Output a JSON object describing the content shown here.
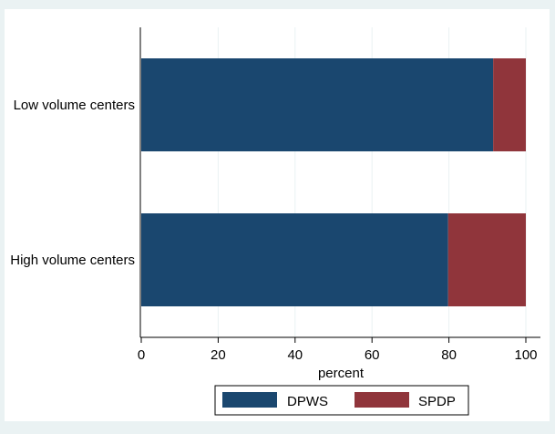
{
  "chart_data": {
    "type": "bar",
    "orientation": "horizontal",
    "stacked": true,
    "categories": [
      "Low volume centers",
      "High volume centers"
    ],
    "series": [
      {
        "name": "DPWS",
        "values": [
          91.5,
          79.8
        ],
        "color": "#1a476f"
      },
      {
        "name": "SPDP",
        "values": [
          8.5,
          20.2
        ],
        "color": "#90353b"
      }
    ],
    "xlabel": "percent",
    "ylabel": "",
    "xlim": [
      0,
      100
    ],
    "xticks": [
      "0",
      "20",
      "40",
      "60",
      "80",
      "100"
    ],
    "grid": true,
    "legend": {
      "placement": "bottom-center"
    }
  },
  "colors": {
    "background": "#eaf2f3",
    "plot_area": "#ffffff",
    "grid": "#eaf2f3"
  }
}
